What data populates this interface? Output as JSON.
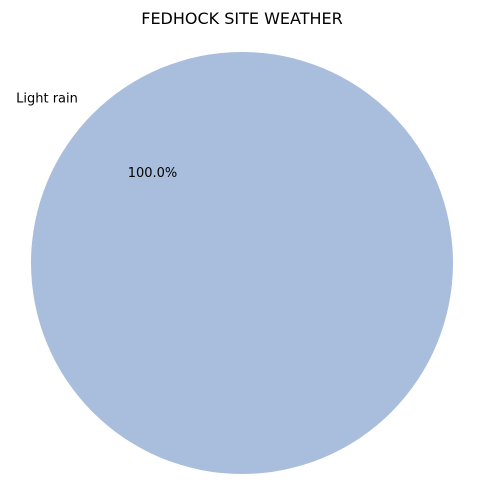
{
  "chart_data": {
    "type": "pie",
    "title": "FEDHOCK SITE WEATHER",
    "slices": [
      {
        "label": "Light rain",
        "value": 100.0,
        "pct_text": "100.0%",
        "color": "#a9bedc"
      }
    ],
    "start_angle_deg": 0,
    "counterclock": true,
    "legend": "none"
  }
}
